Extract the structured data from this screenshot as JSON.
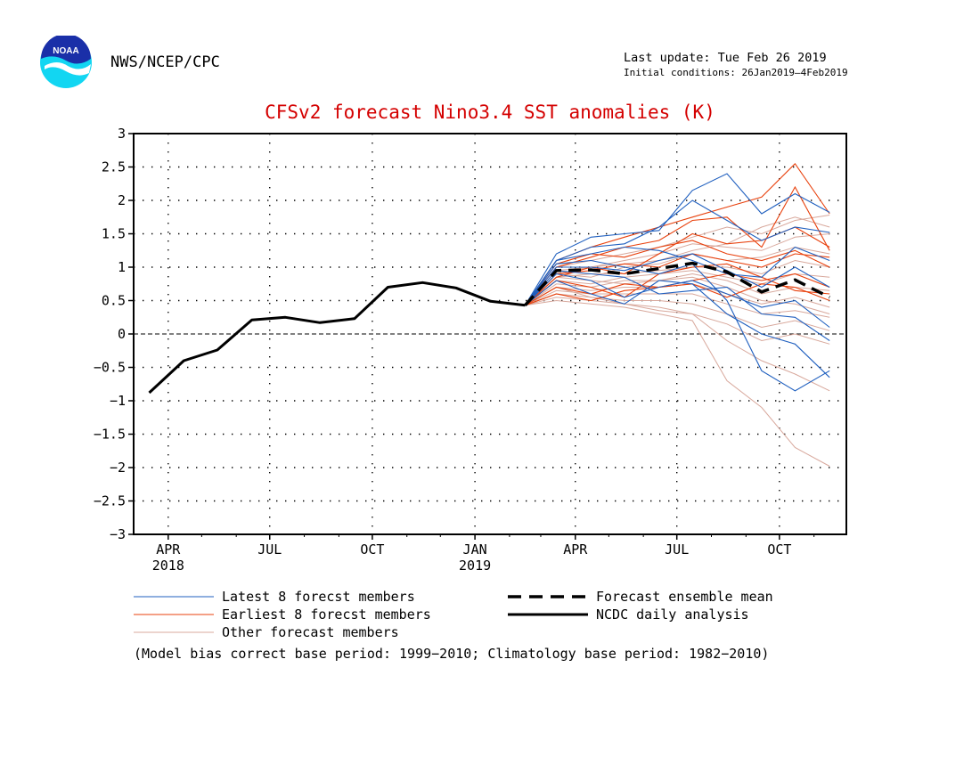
{
  "header": {
    "org": "NWS/NCEP/CPC",
    "last_update": "Last update: Tue Feb 26 2019",
    "initial_conditions": "Initial conditions: 26Jan2019—4Feb2019",
    "logo_text": "NOAA"
  },
  "footer_note": "(Model bias correct base period: 1999−2010; Climatology base period: 1982−2010)",
  "colors": {
    "title": "#d40000",
    "latest": "#1f5fbf",
    "earliest": "#e8400c",
    "other": "#d8a89c",
    "mean": "#000000",
    "analysis": "#000000"
  },
  "chart_data": {
    "type": "line",
    "title": "CFSv2 forecast Nino3.4 SST anomalies (K)",
    "ylim": [
      -3,
      3
    ],
    "yticks": [
      3,
      2.5,
      2,
      1.5,
      1,
      0.5,
      0,
      -0.5,
      -1,
      -1.5,
      -2,
      -2.5,
      -3
    ],
    "ytick_labels": [
      "3",
      "2.5",
      "2",
      "1.5",
      "1",
      "0.5",
      "0",
      "−0.5",
      "−1",
      "−1.5",
      "−2",
      "−2.5",
      "−3"
    ],
    "x_range": [
      "2018-03-01",
      "2019-11-30"
    ],
    "grid": true,
    "xticks": [
      {
        "date": "2018-04",
        "label": "APR",
        "year": "2018"
      },
      {
        "date": "2018-07",
        "label": "JUL",
        "year": ""
      },
      {
        "date": "2018-10",
        "label": "OCT",
        "year": ""
      },
      {
        "date": "2019-01",
        "label": "JAN",
        "year": "2019"
      },
      {
        "date": "2019-04",
        "label": "APR",
        "year": ""
      },
      {
        "date": "2019-07",
        "label": "JUL",
        "year": ""
      },
      {
        "date": "2019-10",
        "label": "OCT",
        "year": ""
      }
    ],
    "analysis": {
      "name": "NCDC daily analysis",
      "x": [
        "2018-03",
        "2018-04",
        "2018-05",
        "2018-06",
        "2018-07",
        "2018-08",
        "2018-09",
        "2018-10",
        "2018-11",
        "2018-12",
        "2019-01",
        "2019-02"
      ],
      "values": [
        -0.88,
        -0.4,
        -0.24,
        0.21,
        0.25,
        0.17,
        0.23,
        0.7,
        0.77,
        0.69,
        0.49,
        0.43
      ]
    },
    "ensemble_mean": {
      "name": "Forecast ensemble mean",
      "x": [
        "2019-02",
        "2019-03",
        "2019-04",
        "2019-05",
        "2019-06",
        "2019-07",
        "2019-08",
        "2019-09",
        "2019-10",
        "2019-11"
      ],
      "values": [
        0.43,
        0.95,
        0.96,
        0.9,
        0.98,
        1.06,
        0.93,
        0.63,
        0.81,
        0.55
      ]
    },
    "forecast_x": [
      "2019-02",
      "2019-03",
      "2019-04",
      "2019-05",
      "2019-06",
      "2019-07",
      "2019-08",
      "2019-09",
      "2019-10",
      "2019-11"
    ],
    "latest_members": {
      "name": "Latest 8 forecst members",
      "series": [
        [
          0.43,
          1.2,
          1.45,
          1.5,
          1.55,
          2.15,
          2.4,
          1.8,
          2.1,
          1.82
        ],
        [
          0.43,
          1.1,
          1.3,
          1.35,
          1.6,
          2.0,
          1.7,
          1.4,
          1.6,
          1.52
        ],
        [
          0.43,
          1.0,
          1.0,
          0.95,
          1.1,
          1.2,
          0.95,
          0.7,
          1.0,
          0.7
        ],
        [
          0.43,
          0.9,
          0.8,
          0.55,
          0.7,
          0.8,
          0.6,
          0.4,
          0.5,
          0.1
        ],
        [
          0.43,
          1.05,
          1.1,
          1.0,
          0.9,
          1.05,
          0.5,
          -0.55,
          -0.85,
          -0.55
        ],
        [
          0.43,
          0.8,
          0.6,
          0.45,
          0.8,
          0.75,
          0.3,
          0.0,
          -0.15,
          -0.65
        ],
        [
          0.43,
          1.1,
          1.2,
          1.3,
          1.25,
          1.1,
          0.9,
          0.85,
          1.3,
          1.1
        ],
        [
          0.43,
          0.95,
          0.9,
          0.85,
          0.6,
          0.65,
          0.7,
          0.3,
          0.25,
          -0.1
        ]
      ]
    },
    "earliest_members": {
      "name": "Earliest 8 forecst members",
      "series": [
        [
          0.43,
          1.1,
          1.3,
          1.45,
          1.6,
          1.75,
          1.9,
          2.05,
          2.55,
          1.8
        ],
        [
          0.43,
          1.0,
          1.15,
          1.3,
          1.4,
          1.7,
          1.75,
          1.3,
          2.2,
          1.25
        ],
        [
          0.43,
          0.9,
          0.95,
          1.05,
          1.0,
          1.2,
          1.1,
          1.0,
          1.2,
          1.15
        ],
        [
          0.43,
          0.7,
          0.6,
          0.75,
          0.7,
          0.8,
          0.9,
          0.8,
          0.9,
          0.7
        ],
        [
          0.43,
          0.6,
          0.5,
          0.65,
          0.7,
          0.75,
          0.55,
          0.75,
          0.7,
          0.5
        ],
        [
          0.43,
          1.05,
          1.2,
          1.15,
          1.3,
          1.4,
          1.2,
          1.1,
          1.25,
          1.0
        ],
        [
          0.43,
          0.8,
          0.7,
          0.55,
          0.9,
          1.0,
          1.05,
          0.85,
          0.65,
          0.6
        ],
        [
          0.43,
          0.85,
          1.0,
          0.9,
          1.2,
          1.5,
          1.35,
          1.4,
          1.6,
          1.3
        ]
      ]
    },
    "other_members": {
      "name": "Other forecast members",
      "series": [
        [
          0.43,
          1.0,
          1.1,
          1.2,
          1.3,
          1.45,
          1.6,
          1.5,
          1.7,
          1.78
        ],
        [
          0.43,
          0.95,
          1.0,
          1.1,
          1.2,
          1.35,
          1.3,
          1.25,
          1.45,
          1.5
        ],
        [
          0.43,
          0.9,
          0.85,
          1.0,
          1.05,
          1.2,
          1.1,
          1.15,
          1.3,
          1.2
        ],
        [
          0.43,
          0.85,
          0.9,
          0.9,
          0.95,
          1.0,
          1.0,
          0.9,
          1.1,
          1.0
        ],
        [
          0.43,
          0.8,
          0.75,
          0.85,
          0.9,
          0.95,
          0.85,
          0.75,
          0.9,
          0.85
        ],
        [
          0.43,
          0.75,
          0.7,
          0.8,
          0.8,
          0.9,
          0.8,
          0.6,
          0.7,
          0.65
        ],
        [
          0.43,
          0.7,
          0.65,
          0.7,
          0.7,
          0.75,
          0.6,
          0.45,
          0.55,
          0.4
        ],
        [
          0.43,
          0.65,
          0.6,
          0.6,
          0.6,
          0.6,
          0.45,
          0.3,
          0.35,
          0.25
        ],
        [
          0.43,
          0.6,
          0.55,
          0.5,
          0.5,
          0.45,
          0.3,
          0.1,
          0.2,
          0.05
        ],
        [
          0.43,
          0.55,
          0.5,
          0.45,
          0.4,
          0.3,
          0.15,
          -0.1,
          0.0,
          -0.15
        ],
        [
          0.43,
          0.5,
          0.45,
          0.4,
          0.3,
          0.2,
          -0.7,
          -1.1,
          -1.7,
          -1.98
        ],
        [
          0.43,
          0.7,
          0.55,
          0.45,
          0.35,
          0.3,
          -0.1,
          -0.4,
          -0.6,
          -0.85
        ],
        [
          0.43,
          0.9,
          1.0,
          1.05,
          1.1,
          1.25,
          1.35,
          1.6,
          1.75,
          1.6
        ],
        [
          0.43,
          0.85,
          0.8,
          0.75,
          0.8,
          0.85,
          0.7,
          0.5,
          0.45,
          0.3
        ]
      ]
    },
    "legend": {
      "position": "bottom",
      "entries": [
        {
          "label": "Latest 8 forecst members",
          "style": "latest"
        },
        {
          "label": "Earliest 8 forecst members",
          "style": "earliest"
        },
        {
          "label": "Other forecast members",
          "style": "other"
        },
        {
          "label": "Forecast ensemble mean",
          "style": "mean"
        },
        {
          "label": "NCDC daily analysis",
          "style": "analysis"
        }
      ]
    }
  }
}
